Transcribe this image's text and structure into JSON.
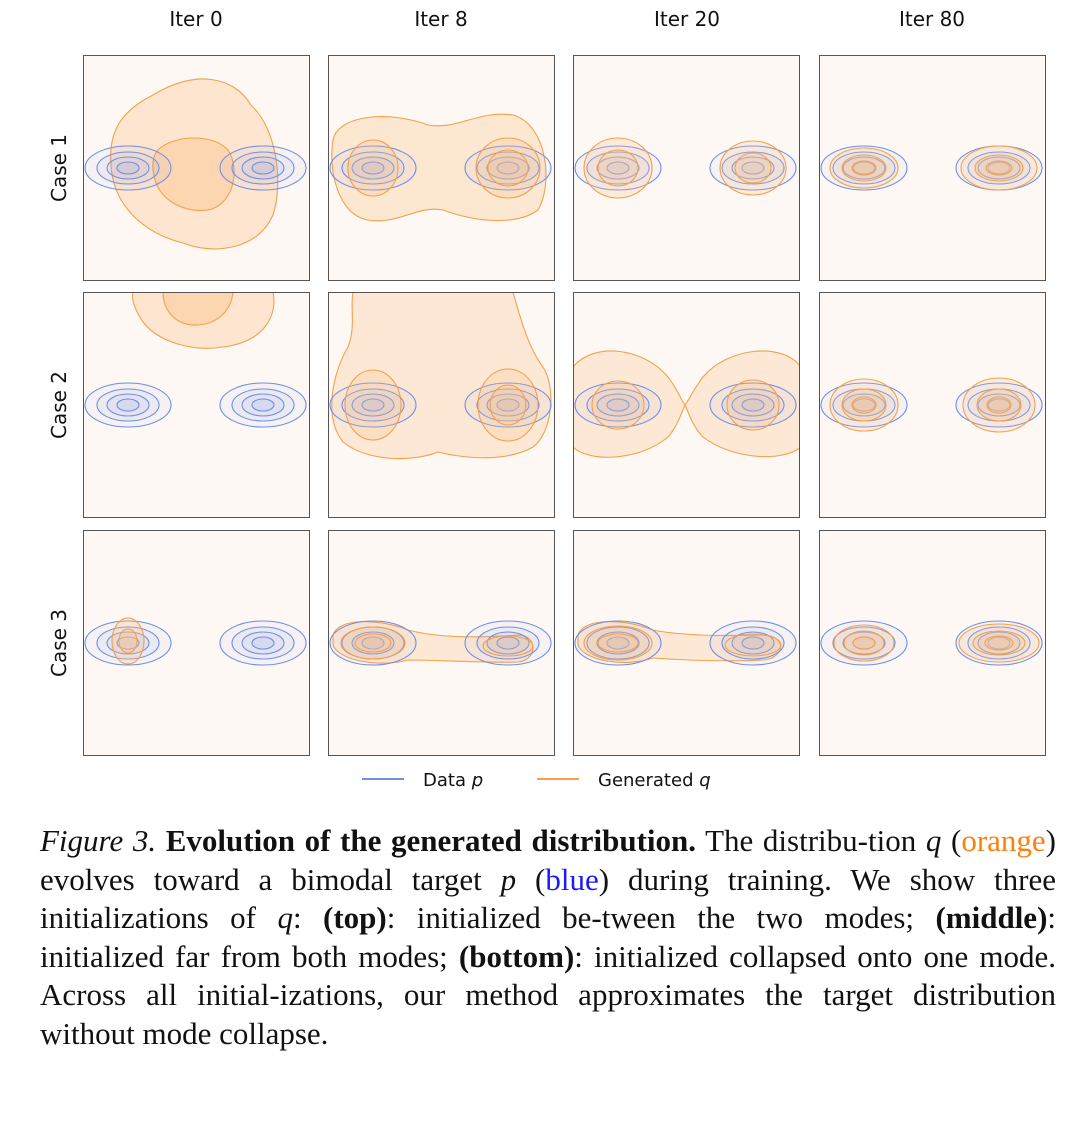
{
  "figure": {
    "column_titles": [
      "Iter 0",
      "Iter 8",
      "Iter 20",
      "Iter 80"
    ],
    "row_labels": [
      "Case 1",
      "Case 2",
      "Case 3"
    ],
    "legend": {
      "data_label": "Data ",
      "data_symbol": "p",
      "generated_label": "Generated ",
      "generated_symbol": "q"
    },
    "colors": {
      "data": "#6f8ee8",
      "generated": "#f5a04a",
      "generated_fill": "#fbc38a",
      "panel_background": "#fdf8f4",
      "panel_border": "#555555"
    }
  },
  "chart_data": {
    "type": "contour",
    "title": "Evolution of the generated distribution",
    "series": [
      {
        "name": "Data p",
        "color": "blue",
        "description": "bimodal target with two modes on the horizontal axis"
      },
      {
        "name": "Generated q",
        "color": "orange",
        "description": "distribution evolving over training iterations"
      }
    ],
    "columns": [
      "Iter 0",
      "Iter 8",
      "Iter 20",
      "Iter 80"
    ],
    "rows": [
      "Case 1",
      "Case 2",
      "Case 3"
    ]
  },
  "caption": {
    "label": "Figure 3.",
    "title": "Evolution of the generated distribution.",
    "s1_a": "The distribu-tion",
    "sym_q": "q",
    "orange_word": "orange",
    "s1_b": "evolves toward a bimodal target",
    "sym_p": "p",
    "blue_word": "blue",
    "s1_c": "during training. We show three initializations of",
    "sym_q2": "q",
    "top_label": "(top)",
    "top_text": ": initialized be-tween the two modes;",
    "middle_label": "(middle)",
    "middle_text": ": initialized far from both modes;",
    "bottom_label": "(bottom)",
    "bottom_text": ": initialized collapsed onto one mode. Across all initial-izations, our method approximates the target distribution without mode collapse."
  }
}
